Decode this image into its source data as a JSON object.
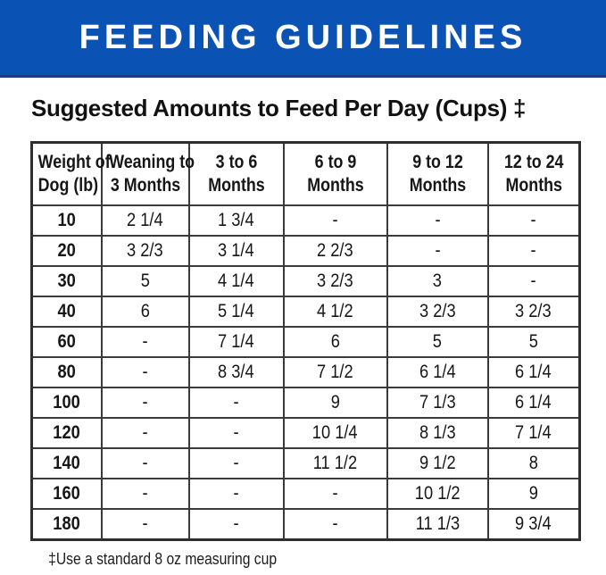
{
  "banner": {
    "title": "FEEDING GUIDELINES",
    "bg_color": "#0b52b5",
    "underline_color": "#1b3f7a",
    "text_color": "#ffffff"
  },
  "subtitle": "Suggested Amounts to Feed Per Day (Cups) ‡",
  "table": {
    "columns": [
      {
        "lines": [
          "Weight of",
          "Dog (lb)"
        ]
      },
      {
        "lines": [
          "Weaning to",
          "3 Months"
        ]
      },
      {
        "lines": [
          "3 to 6",
          "Months"
        ]
      },
      {
        "lines": [
          "6 to 9",
          "Months"
        ]
      },
      {
        "lines": [
          "9 to 12",
          "Months"
        ]
      },
      {
        "lines": [
          "12 to 24",
          "Months"
        ]
      }
    ],
    "rows": [
      [
        "10",
        "2 1/4",
        "1 3/4",
        "-",
        "-",
        "-"
      ],
      [
        "20",
        "3 2/3",
        "3 1/4",
        "2 2/3",
        "-",
        "-"
      ],
      [
        "30",
        "5",
        "4 1/4",
        "3 2/3",
        "3",
        "-"
      ],
      [
        "40",
        "6",
        "5 1/4",
        "4 1/2",
        "3 2/3",
        "3 2/3"
      ],
      [
        "60",
        "-",
        "7 1/4",
        "6",
        "5",
        "5"
      ],
      [
        "80",
        "-",
        "8 3/4",
        "7 1/2",
        "6 1/4",
        "6 1/4"
      ],
      [
        "100",
        "-",
        "-",
        "9",
        "7 1/3",
        "6 1/4"
      ],
      [
        "120",
        "-",
        "-",
        "10 1/4",
        "8 1/3",
        "7 1/4"
      ],
      [
        "140",
        "-",
        "-",
        "11 1/2",
        "9 1/2",
        "8"
      ],
      [
        "160",
        "-",
        "-",
        "-",
        "10 1/2",
        "9"
      ],
      [
        "180",
        "-",
        "-",
        "-",
        "11 1/3",
        "9 3/4"
      ]
    ]
  },
  "footnote": "‡Use a standard 8 oz measuring cup"
}
